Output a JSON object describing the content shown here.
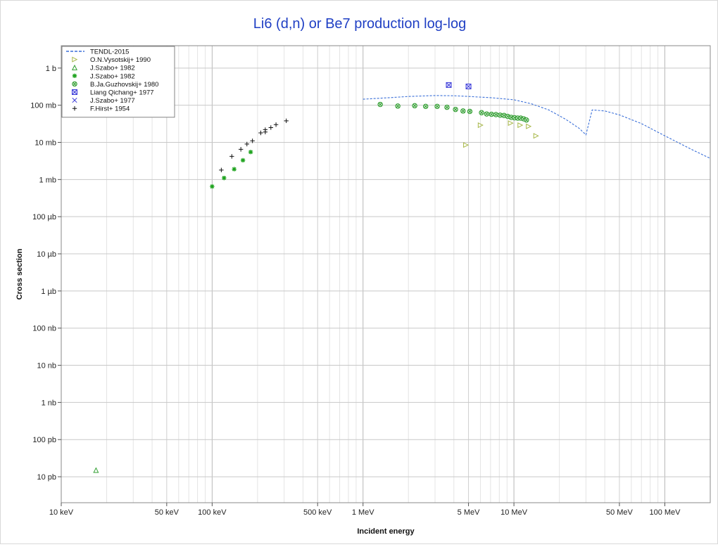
{
  "chart_data": {
    "type": "scatter",
    "title": "Li6 (d,n) or Be7 production log-log",
    "xlabel": "Incident energy",
    "ylabel": "Cross section",
    "xscale": "log",
    "yscale": "log",
    "xlim_eV": [
      10000,
      200000000
    ],
    "ylim_barn": [
      2e-12,
      4
    ],
    "grid": true,
    "legend_position": "top-left",
    "x_ticks": [
      {
        "value": 10000,
        "label": "10 keV"
      },
      {
        "value": 50000,
        "label": "50 keV"
      },
      {
        "value": 100000,
        "label": "100 keV"
      },
      {
        "value": 500000,
        "label": "500 keV"
      },
      {
        "value": 1000000,
        "label": "1 MeV"
      },
      {
        "value": 5000000,
        "label": "5 MeV"
      },
      {
        "value": 10000000,
        "label": "10 MeV"
      },
      {
        "value": 50000000,
        "label": "50 MeV"
      },
      {
        "value": 100000000,
        "label": "100 MeV"
      }
    ],
    "y_ticks": [
      {
        "value": 1,
        "label": "1 b"
      },
      {
        "value": 0.1,
        "label": "100 mb"
      },
      {
        "value": 0.01,
        "label": "10 mb"
      },
      {
        "value": 0.001,
        "label": "1 mb"
      },
      {
        "value": 0.0001,
        "label": "100 µb"
      },
      {
        "value": 1e-05,
        "label": "10 µb"
      },
      {
        "value": 1e-06,
        "label": "1 µb"
      },
      {
        "value": 1e-07,
        "label": "100 nb"
      },
      {
        "value": 1e-08,
        "label": "10 nb"
      },
      {
        "value": 1e-09,
        "label": "1 nb"
      },
      {
        "value": 1e-10,
        "label": "100 pb"
      },
      {
        "value": 1e-11,
        "label": "10 pb"
      }
    ],
    "series": [
      {
        "name": "TENDL-2015",
        "marker": "dashed-line",
        "color": "#3a6fd8",
        "x": [
          1000000,
          1500000,
          2000000,
          3000000,
          4000000,
          5000000,
          7000000,
          10000000,
          13000000,
          17000000,
          22000000,
          27000000,
          30000000,
          33000000,
          40000000,
          50000000,
          70000000,
          100000000,
          150000000,
          200000000
        ],
        "y": [
          0.145,
          0.16,
          0.172,
          0.182,
          0.18,
          0.172,
          0.16,
          0.14,
          0.11,
          0.075,
          0.042,
          0.024,
          0.016,
          0.075,
          0.07,
          0.055,
          0.032,
          0.015,
          0.0065,
          0.0037
        ]
      },
      {
        "name": "O.N.Vysotskij+ 1990",
        "marker": "triangle-right",
        "color": "#a8b84a",
        "x": [
          4800000,
          6000000,
          9500000,
          11000000,
          12500000,
          14000000
        ],
        "y": [
          0.0085,
          0.029,
          0.033,
          0.029,
          0.027,
          0.015
        ]
      },
      {
        "name": "J.Szabo+ 1982",
        "marker": "triangle-up",
        "color": "#2f9e2f",
        "x": [
          17000
        ],
        "y": [
          1.5e-11
        ]
      },
      {
        "name": "J.Szabo+ 1982",
        "marker": "asterisk",
        "color": "#1fa31f",
        "x": [
          100000,
          120000,
          140000,
          160000,
          180000
        ],
        "y": [
          0.00065,
          0.0011,
          0.0019,
          0.0033,
          0.0055
        ]
      },
      {
        "name": "B.Ja.Guzhovskij+ 1980",
        "marker": "circle-x",
        "color": "#2a9a2a",
        "x": [
          1300000,
          1700000,
          2200000,
          2600000,
          3100000,
          3600000,
          4100000,
          4600000,
          5100000,
          6100000,
          6600000,
          7100000,
          7600000,
          8100000,
          8600000,
          9100000,
          9600000,
          10100000,
          10600000,
          11100000,
          11600000,
          12100000
        ],
        "y": [
          0.105,
          0.095,
          0.097,
          0.093,
          0.093,
          0.088,
          0.077,
          0.07,
          0.068,
          0.063,
          0.058,
          0.057,
          0.056,
          0.054,
          0.053,
          0.05,
          0.047,
          0.046,
          0.045,
          0.045,
          0.043,
          0.04
        ]
      },
      {
        "name": "Liang Qichang+ 1977",
        "marker": "square-x",
        "color": "#3a3ad8",
        "x": [
          3700000,
          5000000
        ],
        "y": [
          0.35,
          0.32
        ]
      },
      {
        "name": "J.Szabo+ 1977",
        "marker": "x",
        "color": "#3a3ad8",
        "x": [],
        "y": []
      },
      {
        "name": "F.Hirst+ 1954",
        "marker": "plus",
        "color": "#111111",
        "x": [
          115000,
          135000,
          155000,
          170000,
          185000,
          210000,
          225000,
          225000,
          245000,
          265000,
          310000
        ],
        "y": [
          0.0018,
          0.0042,
          0.0065,
          0.009,
          0.011,
          0.018,
          0.019,
          0.022,
          0.025,
          0.03,
          0.038
        ]
      }
    ]
  }
}
